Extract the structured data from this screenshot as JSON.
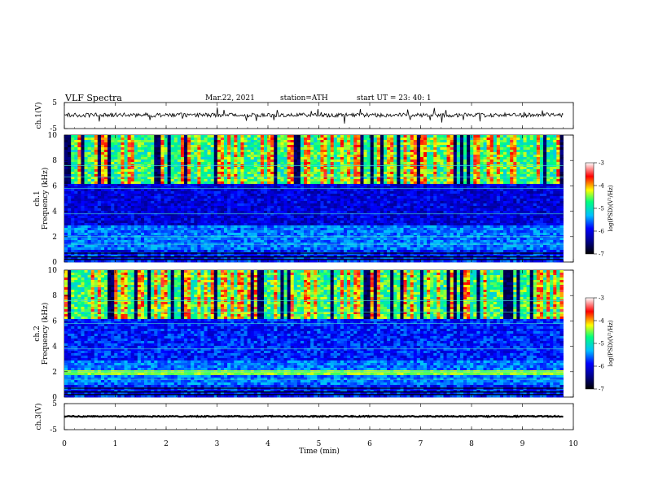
{
  "header": {
    "title": "VLF  Spectra",
    "date": "Mar.22, 2021",
    "station": "station=ATH",
    "start": "start  UT  =    23: 40: 1"
  },
  "chart_data": [
    {
      "type": "line",
      "name": "ch1-waveform",
      "ylabel": "ch.1(V)",
      "ylim": [
        -5,
        5
      ],
      "y_ticks": [
        "5",
        "-5"
      ],
      "xlim": [
        0,
        10
      ],
      "series_end_min": 9.8,
      "approx_level": 0.2
    },
    {
      "type": "heatmap",
      "name": "ch1-spectrogram",
      "ylabel": "ch.1\nFrequency (kHz)",
      "ylim": [
        0,
        10
      ],
      "y_ticks": [
        "0",
        "2",
        "4",
        "6",
        "8",
        "10"
      ],
      "xlim": [
        0,
        10
      ],
      "colorbar": {
        "label": "log(PSD)(V²/Hz)",
        "range": [
          -7,
          -3
        ],
        "ticks": [
          "-3",
          "-4",
          "-5",
          "-6",
          "-7"
        ]
      }
    },
    {
      "type": "heatmap",
      "name": "ch2-spectrogram",
      "ylabel": "ch.2\nFrequency (kHz)",
      "ylim": [
        0,
        10
      ],
      "y_ticks": [
        "0",
        "2",
        "4",
        "6",
        "8",
        "10"
      ],
      "xlim": [
        0,
        10
      ],
      "colorbar": {
        "label": "log(PSD)(V²/Hz)",
        "range": [
          -7,
          -3
        ],
        "ticks": [
          "-3",
          "-4",
          "-5",
          "-6",
          "-7"
        ]
      }
    },
    {
      "type": "line",
      "name": "ch3-waveform",
      "ylabel": "ch.3(V)",
      "ylim": [
        -5,
        5
      ],
      "y_ticks": [
        "5",
        "-5"
      ],
      "xlim": [
        0,
        10
      ],
      "series_end_min": 9.8,
      "approx_level": 0.1
    }
  ],
  "x_axis": {
    "label": "Time  (min)",
    "ticks": [
      "0",
      "1",
      "2",
      "3",
      "4",
      "5",
      "6",
      "7",
      "8",
      "9",
      "10"
    ]
  },
  "colors": {
    "colormap": [
      "#000000",
      "#00008b",
      "#0000ff",
      "#00bfff",
      "#00ff80",
      "#ffff00",
      "#ff0000",
      "#ffffff"
    ]
  }
}
